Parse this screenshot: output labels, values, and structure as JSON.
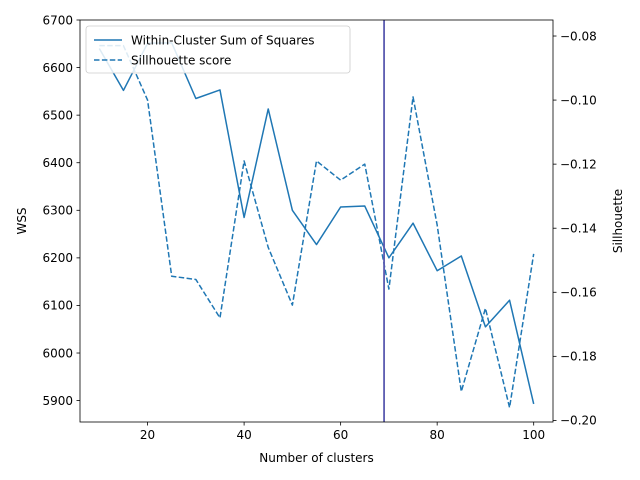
{
  "chart_data": {
    "type": "line",
    "xlabel": "Number of clusters",
    "ylabel_left": "WSS",
    "ylabel_right": "Sillhouette",
    "xlim": [
      6,
      104
    ],
    "ylim_left": [
      5855,
      6700
    ],
    "ylim_right": [
      -0.2005,
      -0.075
    ],
    "x_ticks": [
      20,
      40,
      60,
      80,
      100
    ],
    "y_ticks_left": [
      5900,
      6000,
      6100,
      6200,
      6300,
      6400,
      6500,
      6600,
      6700
    ],
    "y_ticks_right": [
      -0.2,
      -0.18,
      -0.16,
      -0.14,
      -0.12,
      -0.1,
      -0.08
    ],
    "y_tick_labels_right": [
      "−0.20",
      "−0.18",
      "−0.16",
      "−0.14",
      "−0.12",
      "−0.10",
      "−0.08"
    ],
    "x": [
      10,
      15,
      20,
      25,
      30,
      35,
      40,
      45,
      50,
      55,
      60,
      65,
      70,
      75,
      80,
      85,
      90,
      95,
      100
    ],
    "series": [
      {
        "name": "Within-Cluster Sum of Squares",
        "axis": "left",
        "style": "solid",
        "color": "#1f77b4",
        "values": [
          6640,
          6552,
          6651,
          6652,
          6535,
          6553,
          6285,
          6513,
          6300,
          6228,
          6307,
          6309,
          6200,
          6273,
          6173,
          6204,
          6055,
          6111,
          5893
        ]
      },
      {
        "name": "Sillhouette score",
        "axis": "right",
        "style": "dashed",
        "color": "#1f77b4",
        "values": [
          -0.083,
          -0.083,
          -0.1,
          -0.155,
          -0.156,
          -0.168,
          -0.119,
          -0.146,
          -0.164,
          -0.119,
          -0.125,
          -0.12,
          -0.159,
          -0.099,
          -0.139,
          -0.191,
          -0.165,
          -0.196,
          -0.148
        ]
      }
    ],
    "vline": {
      "x": 69,
      "color": "#5b5bb0"
    },
    "legend_position": "upper-left",
    "grid": false
  }
}
